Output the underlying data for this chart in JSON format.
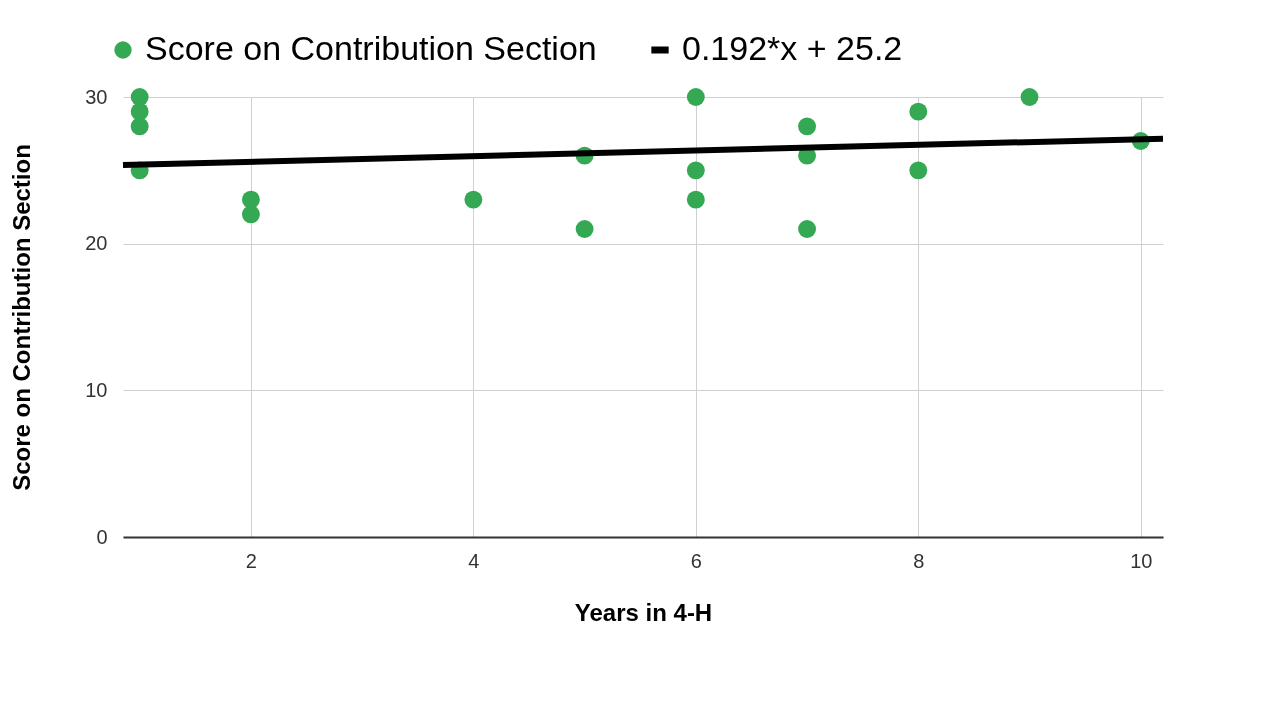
{
  "chart_data": {
    "type": "scatter",
    "xlabel": "Years in 4-H",
    "ylabel": "Score on Contribution Section",
    "xlim": [
      0.85,
      10.2
    ],
    "ylim": [
      0,
      30
    ],
    "xticks": [
      2,
      4,
      6,
      8,
      10
    ],
    "yticks": [
      0,
      10,
      20,
      30
    ],
    "grid": true,
    "legend": "top",
    "series": [
      {
        "name": "Score on Contribution Section",
        "color": "#34a853",
        "marker": "circle",
        "x": [
          1,
          1,
          1,
          1,
          2,
          2,
          4,
          5,
          5,
          6,
          6,
          6,
          7,
          7,
          7,
          8,
          8,
          9,
          10
        ],
        "values": [
          30,
          29,
          28,
          25,
          23,
          22,
          23,
          26,
          21,
          30,
          25,
          23,
          28,
          26,
          21,
          29,
          25,
          30,
          27
        ]
      },
      {
        "name": "0.192*x + 25.2",
        "type": "line",
        "color": "#000000",
        "x": [
          0.85,
          10.2
        ],
        "values": [
          25.36,
          27.16
        ]
      }
    ]
  }
}
